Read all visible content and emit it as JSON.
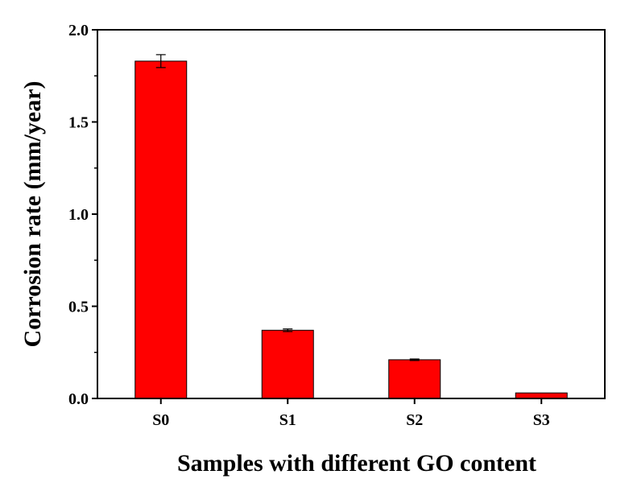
{
  "chart_data": {
    "type": "bar",
    "title": "",
    "xlabel": "Samples with different GO content",
    "ylabel": "Corrosion rate (mm/year)",
    "categories": [
      "S0",
      "S1",
      "S2",
      "S3"
    ],
    "values": [
      1.83,
      0.37,
      0.21,
      0.03
    ],
    "errors": [
      0.035,
      0.007,
      0.004,
      0.0
    ],
    "ylim": [
      0,
      2.0
    ],
    "yticks": [
      0.0,
      0.5,
      1.0,
      1.5,
      2.0
    ],
    "ytick_labels": [
      "0.0",
      "0.5",
      "1.0",
      "1.5",
      "2.0"
    ],
    "grid": false,
    "legend": "none",
    "bar_color": "#ff0000",
    "edge_color": "#000000"
  }
}
